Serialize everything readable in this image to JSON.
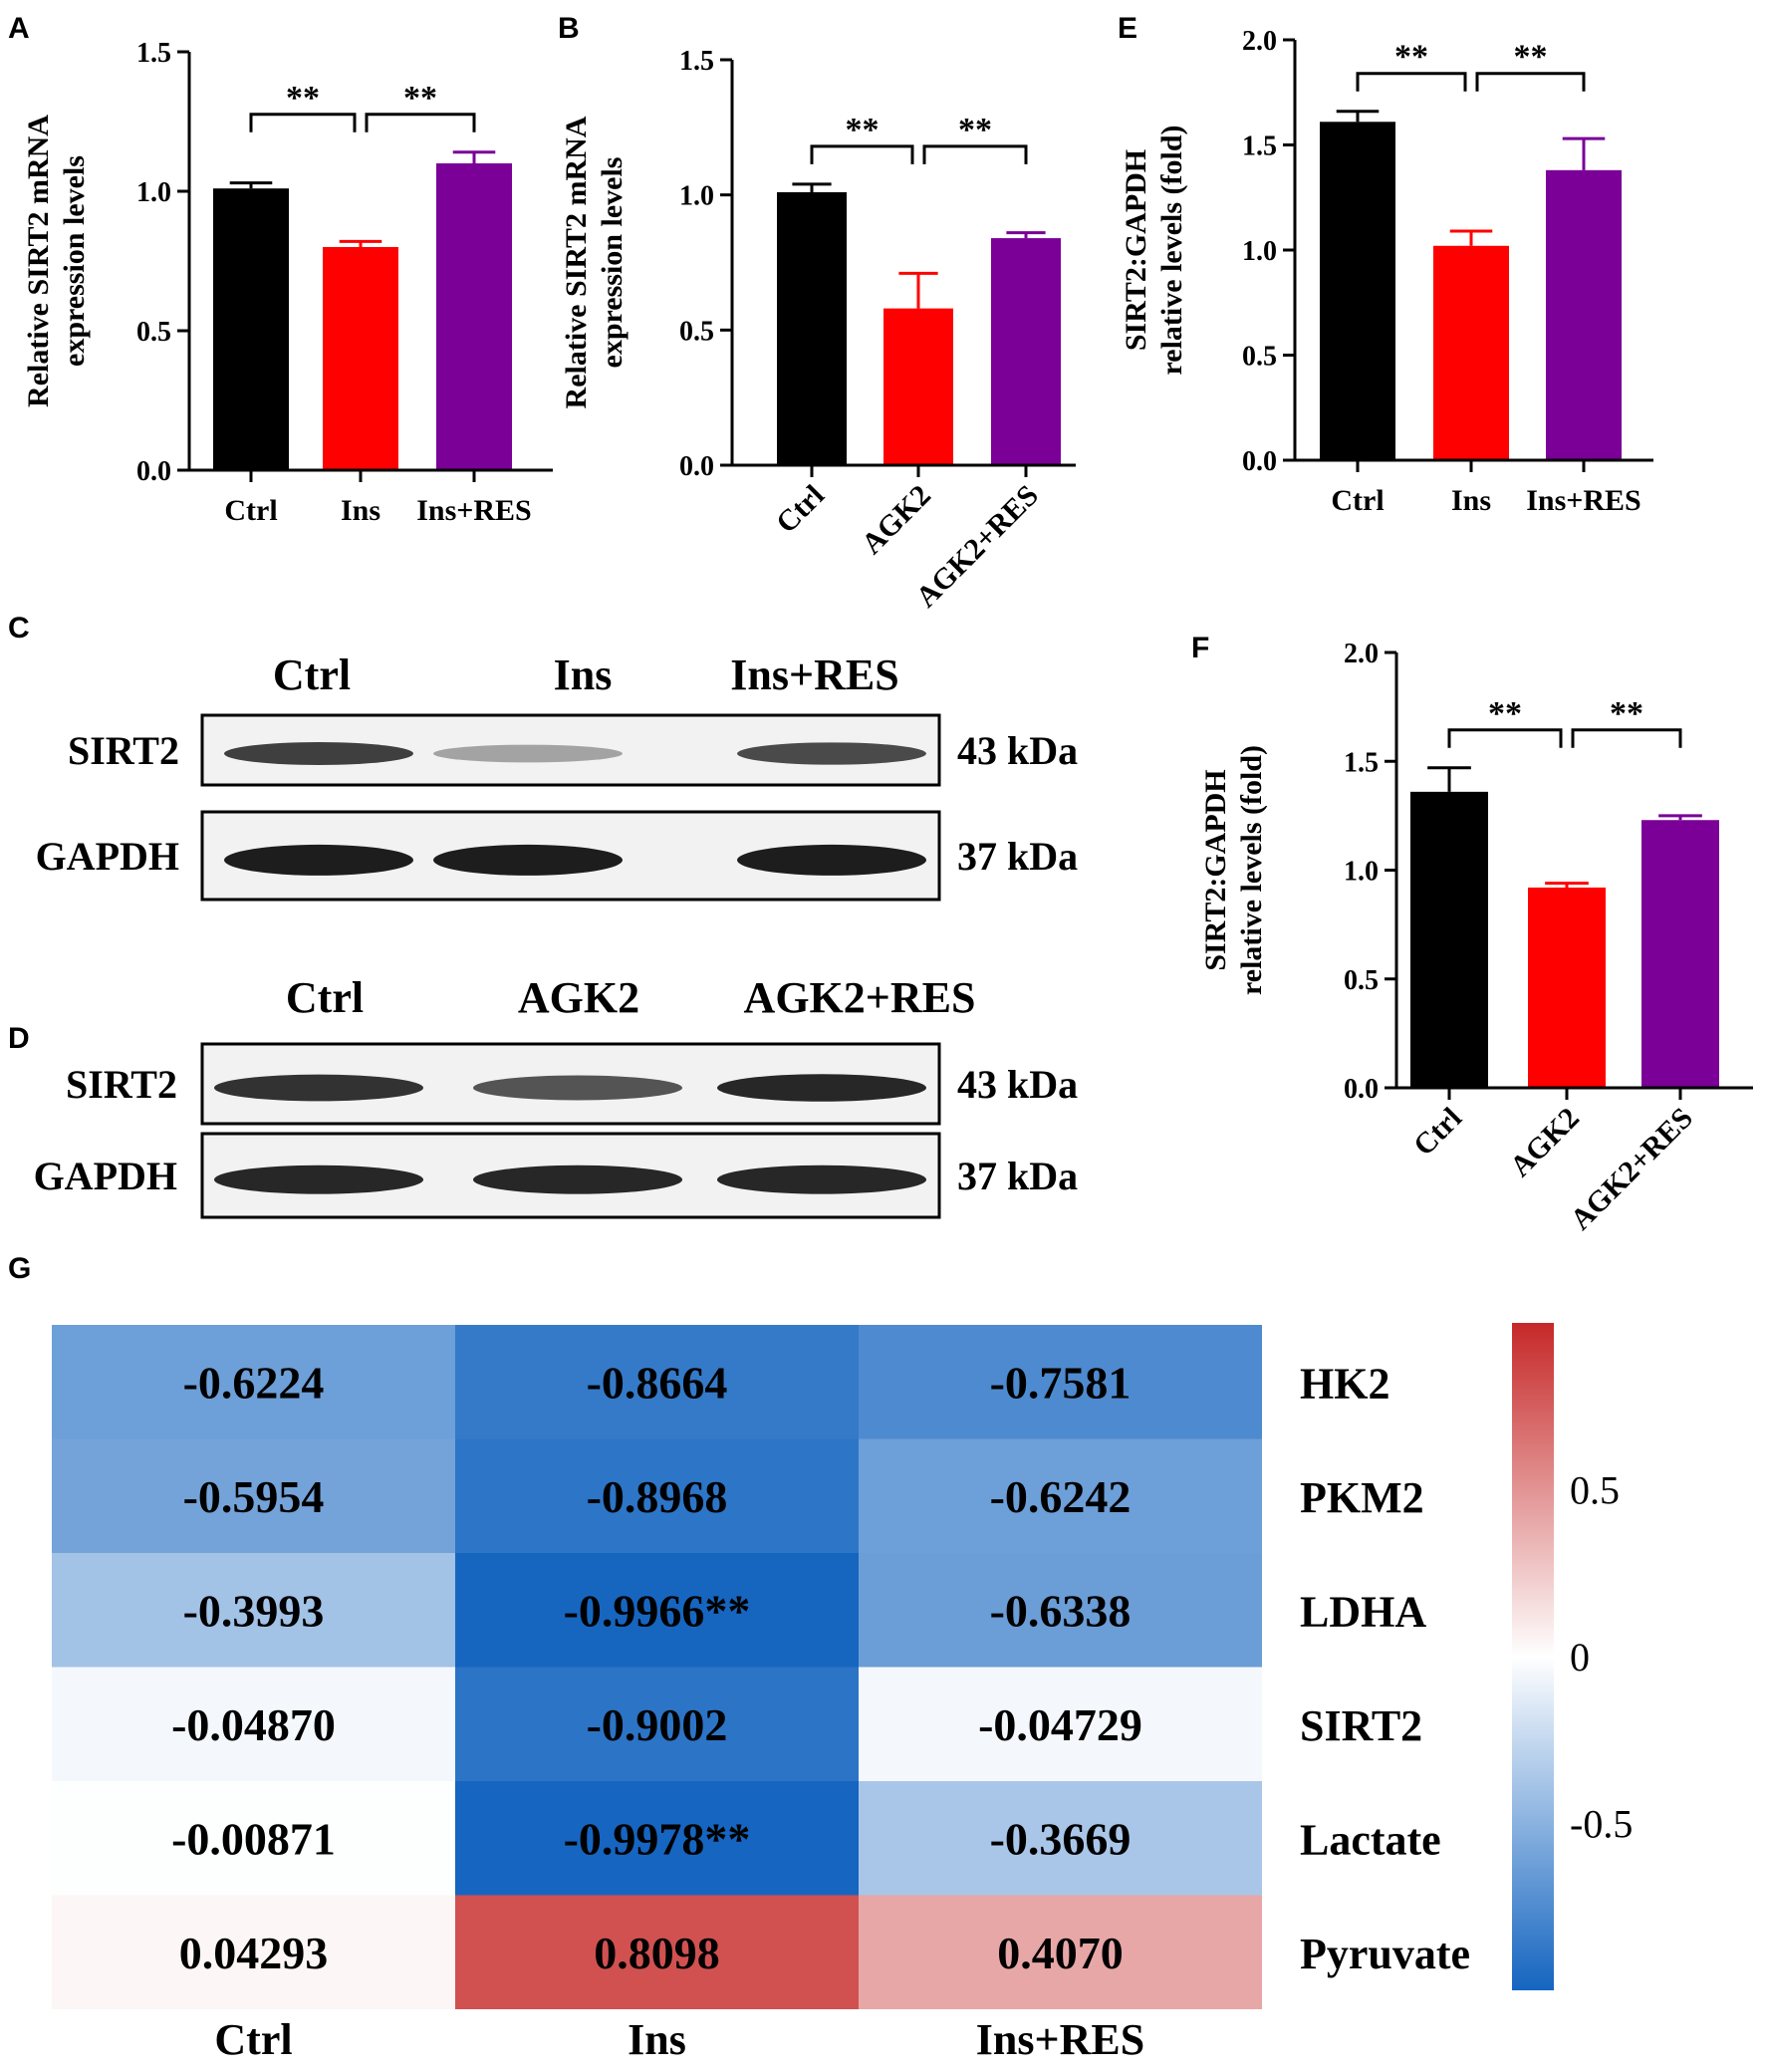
{
  "panels": {
    "A": {
      "letter": "A"
    },
    "B": {
      "letter": "B"
    },
    "C": {
      "letter": "C"
    },
    "D": {
      "letter": "D"
    },
    "E": {
      "letter": "E"
    },
    "F": {
      "letter": "F"
    },
    "G": {
      "letter": "G"
    }
  },
  "colors": {
    "ctrl": "#000000",
    "treat": "#ff0000",
    "res": "#7a0097",
    "heat_neg": "#1565c0",
    "heat_pos": "#c62828",
    "heat_mid": "#ffffff"
  },
  "significance": "**",
  "blot_C": {
    "lanes": [
      "Ctrl",
      "Ins",
      "Ins+RES"
    ],
    "rows": [
      {
        "label": "SIRT2",
        "size": "43 kDa"
      },
      {
        "label": "GAPDH",
        "size": "37 kDa"
      }
    ],
    "band_intensity": {
      "SIRT2": [
        0.8,
        0.35,
        0.75
      ],
      "GAPDH": [
        0.95,
        0.95,
        0.95
      ]
    }
  },
  "blot_D": {
    "lanes": [
      "Ctrl",
      "AGK2",
      "AGK2+RES"
    ],
    "rows": [
      {
        "label": "SIRT2",
        "size": "43 kDa"
      },
      {
        "label": "GAPDH",
        "size": "37 kDa"
      }
    ],
    "band_intensity": {
      "SIRT2": [
        0.85,
        0.7,
        0.9
      ],
      "GAPDH": [
        0.9,
        0.9,
        0.9
      ]
    }
  },
  "chart_data": [
    {
      "panel": "A",
      "type": "bar",
      "categories": [
        "Ctrl",
        "Ins",
        "Ins+RES"
      ],
      "values": [
        1.01,
        0.8,
        1.1
      ],
      "errors": [
        0.02,
        0.02,
        0.04
      ],
      "ylabel": [
        "Relative SIRT2 mRNA",
        "expression levels"
      ],
      "ylim": [
        0,
        1.5
      ],
      "yticks": [
        "0.0",
        "0.5",
        "1.0",
        "1.5"
      ],
      "ytick_values": [
        0,
        0.5,
        1.0,
        1.5
      ],
      "brackets": [
        [
          0,
          1
        ],
        [
          1,
          2
        ]
      ],
      "rotate_xticks": false
    },
    {
      "panel": "B",
      "type": "bar",
      "categories": [
        "Ctrl",
        "AGK2",
        "AGK2+RES"
      ],
      "values": [
        1.01,
        0.58,
        0.84
      ],
      "errors": [
        0.03,
        0.13,
        0.02
      ],
      "ylabel": [
        "Relative SIRT2 mRNA",
        "expression levels"
      ],
      "ylim": [
        0,
        1.5
      ],
      "yticks": [
        "0.0",
        "0.5",
        "1.0",
        "1.5"
      ],
      "ytick_values": [
        0,
        0.5,
        1.0,
        1.5
      ],
      "brackets": [
        [
          0,
          1
        ],
        [
          1,
          2
        ]
      ],
      "rotate_xticks": true
    },
    {
      "panel": "E",
      "type": "bar",
      "categories": [
        "Ctrl",
        "Ins",
        "Ins+RES"
      ],
      "values": [
        1.61,
        1.02,
        1.38
      ],
      "errors": [
        0.05,
        0.07,
        0.15
      ],
      "ylabel": [
        "SIRT2:GAPDH",
        "relative levels (fold)"
      ],
      "ylim": [
        0,
        2.0
      ],
      "yticks": [
        "0.0",
        "0.5",
        "1.0",
        "1.5",
        "2.0"
      ],
      "ytick_values": [
        0,
        0.5,
        1.0,
        1.5,
        2.0
      ],
      "brackets": [
        [
          0,
          1
        ],
        [
          1,
          2
        ]
      ],
      "rotate_xticks": false
    },
    {
      "panel": "F",
      "type": "bar",
      "categories": [
        "Ctrl",
        "AGK2",
        "AGK2+RES"
      ],
      "values": [
        1.36,
        0.92,
        1.23
      ],
      "errors": [
        0.11,
        0.02,
        0.02
      ],
      "ylabel": [
        "SIRT2:GAPDH",
        "relative levels (fold)"
      ],
      "ylim": [
        0,
        2.0
      ],
      "yticks": [
        "0.0",
        "0.5",
        "1.0",
        "1.5",
        "2.0"
      ],
      "ytick_values": [
        0,
        0.5,
        1.0,
        1.5,
        2.0
      ],
      "brackets": [
        [
          0,
          1
        ],
        [
          1,
          2
        ]
      ],
      "rotate_xticks": true
    },
    {
      "panel": "G",
      "type": "heatmap",
      "columns": [
        "Ctrl",
        "Ins",
        "Ins+RES"
      ],
      "rows": [
        "HK2",
        "PKM2",
        "LDHA",
        "SIRT2",
        "Lactate",
        "Pyruvate"
      ],
      "values": [
        [
          -0.6224,
          -0.8664,
          -0.7581
        ],
        [
          -0.5954,
          -0.8968,
          -0.6242
        ],
        [
          -0.3993,
          -0.9966,
          -0.6338
        ],
        [
          -0.0487,
          -0.9002,
          -0.04729
        ],
        [
          -0.00871,
          -0.9978,
          -0.3669
        ],
        [
          0.04293,
          0.8098,
          0.407
        ]
      ],
      "labels": [
        [
          "-0.6224",
          "-0.8664",
          "-0.7581"
        ],
        [
          "-0.5954",
          "-0.8968",
          "-0.6242"
        ],
        [
          "-0.3993",
          "-0.9966**",
          "-0.6338"
        ],
        [
          "-0.04870",
          "-0.9002",
          "-0.04729"
        ],
        [
          "-0.00871",
          "-0.9978**",
          "-0.3669"
        ],
        [
          "0.04293",
          "0.8098",
          "0.4070"
        ]
      ],
      "colorbar": {
        "range": [
          -1,
          1
        ],
        "ticks": [
          "0.5",
          "0",
          "-0.5"
        ],
        "tick_values": [
          0.5,
          0,
          -0.5
        ]
      }
    }
  ]
}
